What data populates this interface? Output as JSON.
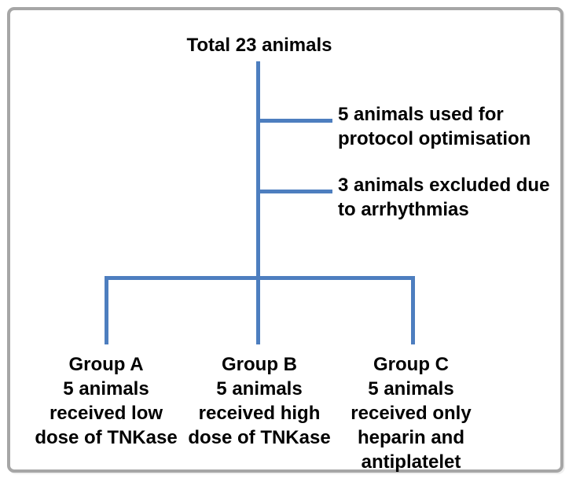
{
  "diagram": {
    "title": "Total 23 animals",
    "notes": [
      {
        "id": "protocol-optimisation",
        "lines": [
          "5 animals used for",
          "protocol optimisation"
        ]
      },
      {
        "id": "excluded-arrhythmias",
        "lines": [
          "3 animals excluded due",
          "to arrhythmias"
        ]
      }
    ],
    "groups": [
      {
        "id": "group-a",
        "lines": [
          "Group A",
          "5 animals",
          "received low",
          "dose of TNKase"
        ]
      },
      {
        "id": "group-b",
        "lines": [
          "Group B",
          "5 animals",
          "received high",
          "dose of TNKase"
        ]
      },
      {
        "id": "group-c",
        "lines": [
          "Group C",
          "5 animals",
          "received only",
          "heparin and",
          "antiplatelet"
        ]
      }
    ],
    "colors": {
      "connector": "#4d7ebf",
      "text": "#000000",
      "frame_border": "#a6a6a6",
      "background": "#ffffff"
    }
  }
}
